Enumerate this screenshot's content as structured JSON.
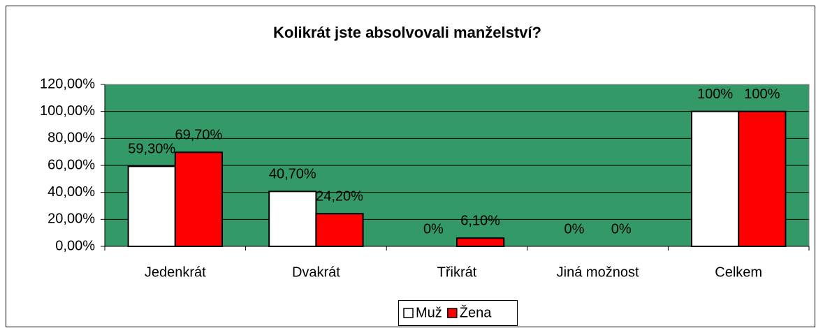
{
  "chart_data": {
    "type": "bar",
    "title": "Kolikrát jste absolvovali manželství?",
    "categories": [
      "Jedenkrát",
      "Dvakrát",
      "Třikrát",
      "Jiná možnost",
      "Celkem"
    ],
    "series": [
      {
        "name": "Muž",
        "color": "#ffffff",
        "values": [
          59.3,
          40.7,
          0,
          0,
          100
        ],
        "value_labels": [
          "59,30%",
          "40,70%",
          "0%",
          "0%",
          "100%"
        ]
      },
      {
        "name": "Žena",
        "color": "#ff0000",
        "values": [
          69.7,
          24.2,
          6.1,
          0,
          100
        ],
        "value_labels": [
          "69,70%",
          "24,20%",
          "6,10%",
          "0%",
          "100%"
        ]
      }
    ],
    "ylim": [
      0,
      120
    ],
    "yticks": [
      {
        "value": 0,
        "label": "0,00%"
      },
      {
        "value": 20,
        "label": "20,00%"
      },
      {
        "value": 40,
        "label": "40,00%"
      },
      {
        "value": 60,
        "label": "60,00%"
      },
      {
        "value": 80,
        "label": "80,00%"
      },
      {
        "value": 100,
        "label": "100,00%"
      },
      {
        "value": 120,
        "label": "120,00%"
      }
    ],
    "grid": true,
    "plot_background": "#339966",
    "legend": "bottom"
  }
}
